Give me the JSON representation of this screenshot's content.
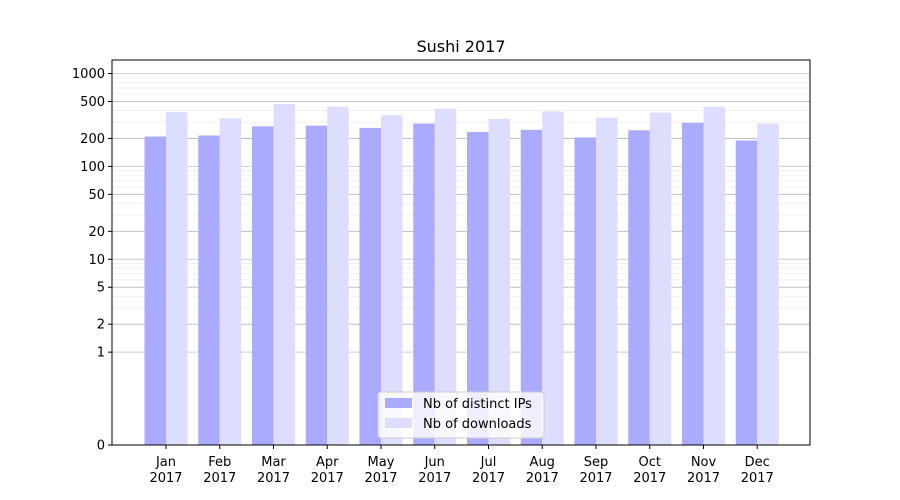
{
  "chart_data": {
    "type": "bar",
    "title": "Sushi 2017",
    "xlabel": "",
    "ylabel": "",
    "yscale": "symlog",
    "ylim": [
      0,
      1400
    ],
    "yticks": [
      0,
      1,
      2,
      5,
      10,
      20,
      50,
      100,
      200,
      500,
      1000
    ],
    "categories": [
      "Jan\n2017",
      "Feb\n2017",
      "Mar\n2017",
      "Apr\n2017",
      "May\n2017",
      "Jun\n2017",
      "Jul\n2017",
      "Aug\n2017",
      "Sep\n2017",
      "Oct\n2017",
      "Nov\n2017",
      "Dec\n2017"
    ],
    "series": [
      {
        "name": "Nb of distinct IPs",
        "color": "#aaaaff",
        "values": [
          210,
          215,
          270,
          275,
          260,
          290,
          235,
          248,
          205,
          245,
          295,
          190
        ]
      },
      {
        "name": "Nb of downloads",
        "color": "#ddddff",
        "values": [
          385,
          330,
          470,
          440,
          355,
          420,
          325,
          390,
          335,
          380,
          440,
          290
        ]
      }
    ],
    "grid": true,
    "legend_position": "bottom-center"
  }
}
